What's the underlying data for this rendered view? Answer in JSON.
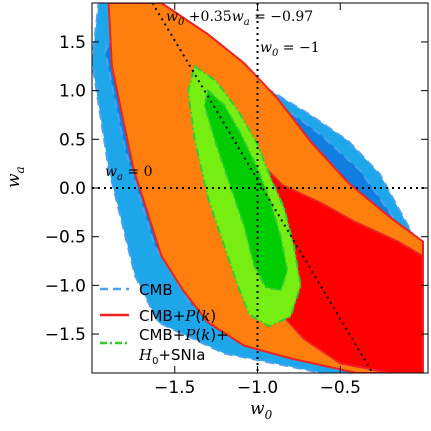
{
  "chart_data": {
    "type": "contour",
    "xlabel": "w_0",
    "ylabel": "w_a",
    "xlim": [
      -2.0,
      0.03
    ],
    "ylim": [
      -1.9,
      1.9
    ],
    "xticks": [
      -1.5,
      -1.0,
      -0.5
    ],
    "xtick_labels": [
      "−1.5",
      "−1.0",
      "−0.5"
    ],
    "yticks": [
      1.5,
      1.0,
      0.5,
      0.0,
      -0.5,
      -1.0,
      -1.5
    ],
    "ytick_labels": [
      "1.5",
      "1.0",
      "0.5",
      "0.0",
      "−0.5",
      "−1.0",
      "−1.5"
    ],
    "reference_lines": [
      {
        "kind": "vertical",
        "x": -1.0,
        "label": "w_0 = −1"
      },
      {
        "kind": "horizontal",
        "y": 0.0,
        "label": "w_a = 0"
      },
      {
        "kind": "diagonal",
        "equation": "w_0 + 0.35 w_a = −0.97",
        "label": "w_0 + 0.35w_a = −0.97"
      }
    ],
    "series": [
      {
        "name": "CMB",
        "fill_colors": [
          "#1ea6ea",
          "#0f7ee0"
        ],
        "line_color": "#4d9ff0",
        "line_style": "dashed",
        "contours": [
          [
            [
              -1.96,
              1.9
            ],
            [
              -1.62,
              1.9
            ],
            [
              -1.36,
              1.5
            ],
            [
              -1.02,
              1.1
            ],
            [
              -0.68,
              0.75
            ],
            [
              -0.45,
              0.48
            ],
            [
              -0.26,
              0.14
            ],
            [
              -0.12,
              -0.3
            ],
            [
              0.0,
              -0.66
            ],
            [
              0.0,
              -1.9
            ],
            [
              -0.61,
              -1.9
            ],
            [
              -1.2,
              -1.7
            ],
            [
              -1.6,
              -1.38
            ],
            [
              -1.74,
              -0.9
            ],
            [
              -1.9,
              0.2
            ],
            [
              -2.0,
              1.3
            ]
          ],
          [
            [
              -1.78,
              1.9
            ],
            [
              -1.5,
              1.65
            ],
            [
              -1.15,
              1.18
            ],
            [
              -0.86,
              0.85
            ],
            [
              -0.62,
              0.55
            ],
            [
              -0.38,
              0.18
            ],
            [
              -0.18,
              -0.3
            ],
            [
              -0.03,
              -0.78
            ],
            [
              0.0,
              -1.12
            ],
            [
              0.0,
              -1.9
            ],
            [
              -0.45,
              -1.9
            ],
            [
              -1.0,
              -1.6
            ],
            [
              -1.4,
              -1.2
            ],
            [
              -1.62,
              -0.6
            ],
            [
              -1.8,
              0.4
            ],
            [
              -1.92,
              1.4
            ]
          ]
        ]
      },
      {
        "name": "CMB+P(k)",
        "fill_colors": [
          "#ff7f0e",
          "#ff0000"
        ],
        "line_color": "#ee2222",
        "line_style": "solid",
        "contours": [
          [
            [
              -1.9,
              1.9
            ],
            [
              -1.58,
              1.9
            ],
            [
              -1.3,
              1.58
            ],
            [
              -1.08,
              1.28
            ],
            [
              -0.88,
              0.92
            ],
            [
              -0.68,
              0.48
            ],
            [
              -0.45,
              0.05
            ],
            [
              -0.2,
              -0.3
            ],
            [
              0.0,
              -0.55
            ],
            [
              0.0,
              -1.9
            ],
            [
              -0.4,
              -1.9
            ],
            [
              -0.8,
              -1.75
            ],
            [
              -1.08,
              -1.62
            ],
            [
              -1.3,
              -1.38
            ],
            [
              -1.45,
              -1.05
            ],
            [
              -1.58,
              -0.7
            ],
            [
              -1.75,
              0.2
            ],
            [
              -1.88,
              1.25
            ]
          ],
          [
            [
              -1.28,
              1.05
            ],
            [
              -1.16,
              0.85
            ],
            [
              -1.05,
              0.55
            ],
            [
              -0.96,
              0.22
            ],
            [
              -0.85,
              0.03
            ],
            [
              -0.62,
              -0.15
            ],
            [
              -0.42,
              -0.34
            ],
            [
              -0.15,
              -0.55
            ],
            [
              0.0,
              -0.7
            ],
            [
              0.0,
              -1.9
            ],
            [
              -0.2,
              -1.9
            ],
            [
              -0.5,
              -1.8
            ],
            [
              -0.72,
              -1.55
            ],
            [
              -0.88,
              -1.25
            ],
            [
              -0.98,
              -0.92
            ],
            [
              -1.05,
              -0.55
            ],
            [
              -1.16,
              -0.1
            ],
            [
              -1.25,
              0.4
            ],
            [
              -1.32,
              0.85
            ]
          ]
        ]
      },
      {
        "name": "CMB+P(k)+ H_0+SNIa",
        "fill_colors": [
          "#77ee11",
          "#00cc00"
        ],
        "line_color": "#33cc33",
        "line_style": "dashdot",
        "contours": [
          [
            [
              -1.38,
              1.25
            ],
            [
              -1.25,
              1.1
            ],
            [
              -1.12,
              0.8
            ],
            [
              -1.0,
              0.45
            ],
            [
              -0.92,
              0.1
            ],
            [
              -0.84,
              -0.2
            ],
            [
              -0.78,
              -0.6
            ],
            [
              -0.74,
              -1.0
            ],
            [
              -0.8,
              -1.32
            ],
            [
              -0.93,
              -1.42
            ],
            [
              -1.05,
              -1.3
            ],
            [
              -1.12,
              -1.0
            ],
            [
              -1.2,
              -0.6
            ],
            [
              -1.3,
              -0.1
            ],
            [
              -1.38,
              0.5
            ],
            [
              -1.42,
              1.0
            ]
          ],
          [
            [
              -1.3,
              1.0
            ],
            [
              -1.2,
              0.85
            ],
            [
              -1.1,
              0.55
            ],
            [
              -1.0,
              0.2
            ],
            [
              -0.92,
              -0.15
            ],
            [
              -0.86,
              -0.5
            ],
            [
              -0.82,
              -0.85
            ],
            [
              -0.86,
              -1.05
            ],
            [
              -0.95,
              -1.02
            ],
            [
              -1.02,
              -0.8
            ],
            [
              -1.08,
              -0.4
            ],
            [
              -1.17,
              0.05
            ],
            [
              -1.26,
              0.5
            ],
            [
              -1.32,
              0.85
            ]
          ]
        ]
      }
    ],
    "legend": {
      "position": "lower-left",
      "entries": [
        {
          "line1": "CMB",
          "line2": ""
        },
        {
          "line1": "CMB+P(k)",
          "line2": ""
        },
        {
          "line1": "CMB+P(k)+",
          "line2": "H_0+SNIa"
        }
      ]
    }
  }
}
